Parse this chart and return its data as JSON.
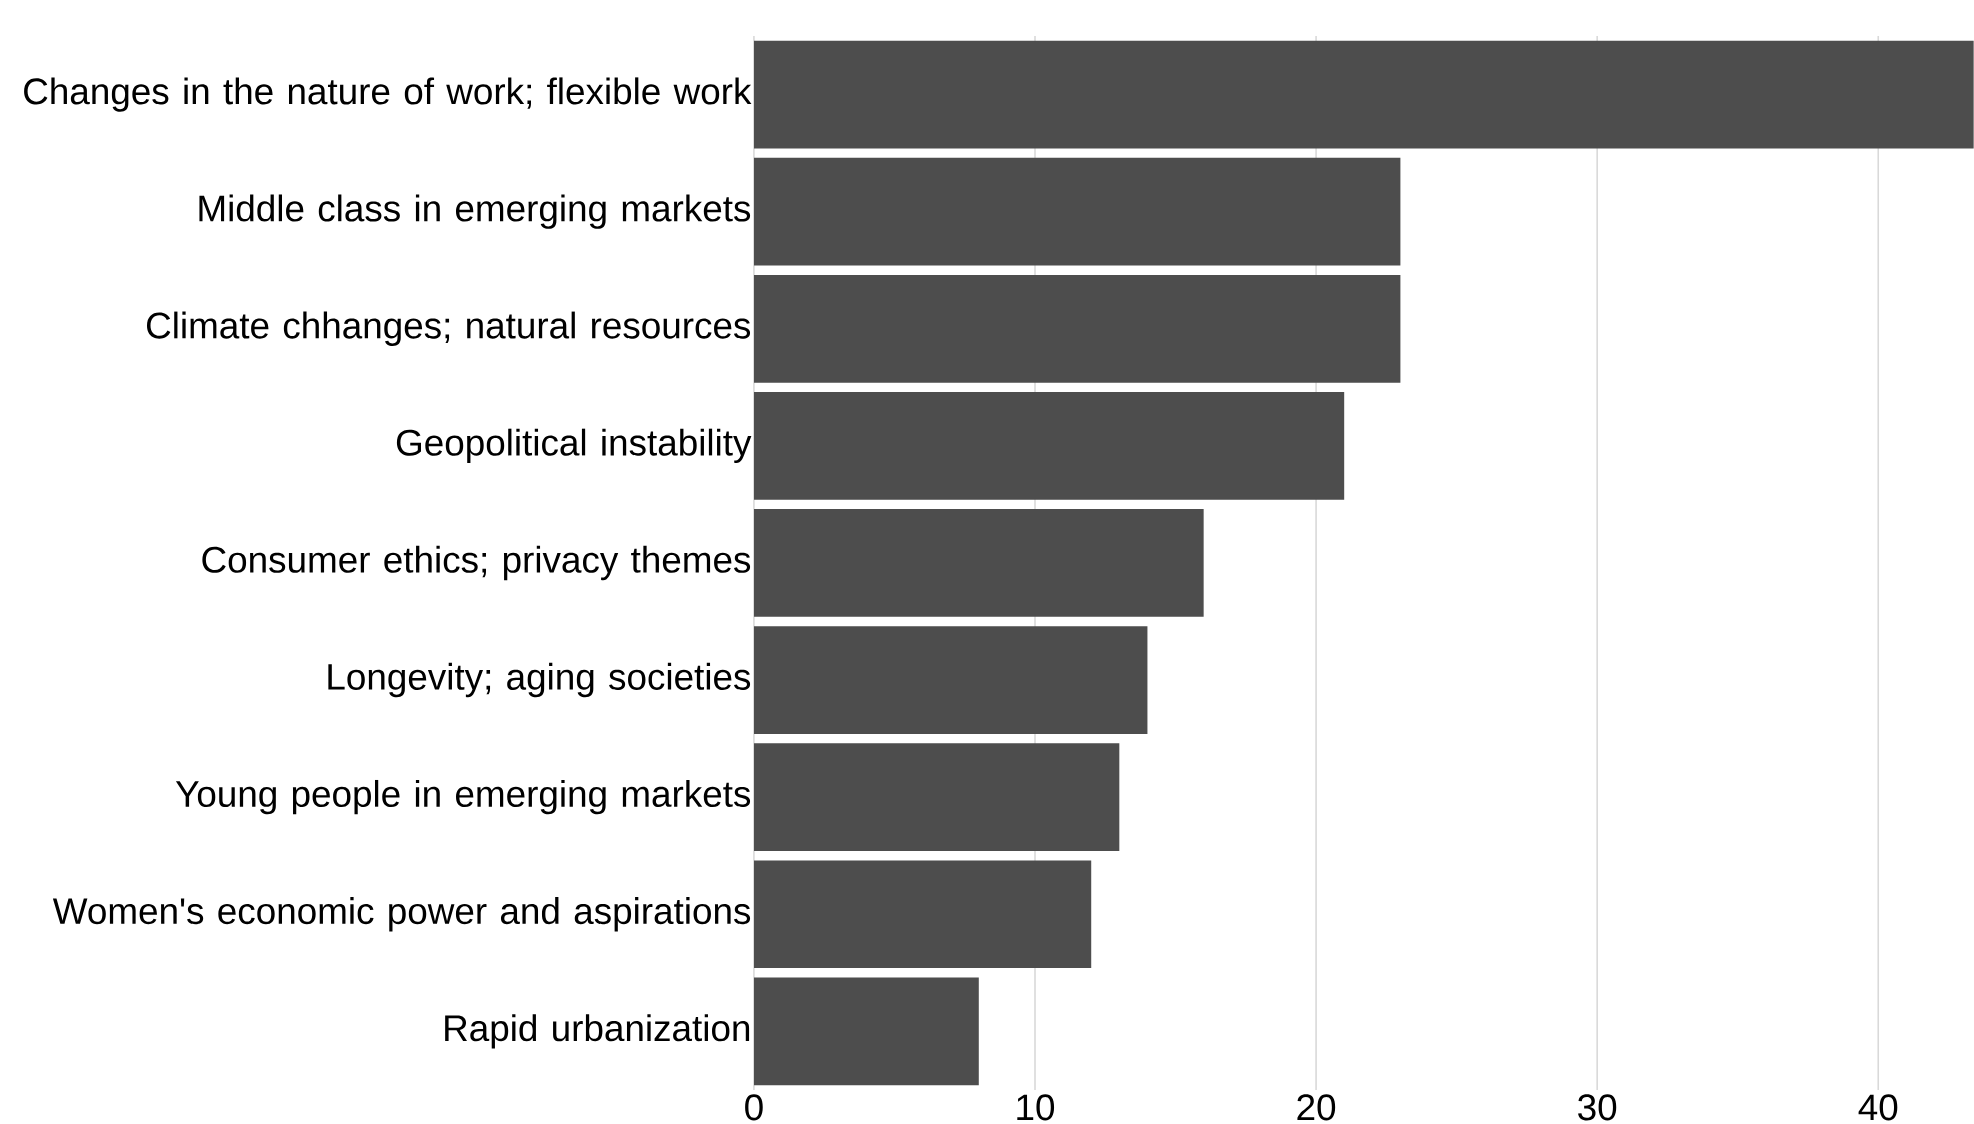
{
  "chart_data": {
    "type": "bar",
    "orientation": "horizontal",
    "categories": [
      "Changes in the nature of work; flexible work",
      "Middle class in emerging markets",
      "Climate chhanges; natural resources",
      "Geopolitical instability",
      "Consumer ethics; privacy themes",
      "Longevity; aging societies",
      "Young people in emerging markets",
      "Women's economic power and aspirations",
      "Rapid urbanization"
    ],
    "values": [
      43.4,
      23,
      23,
      21,
      16,
      14,
      13,
      12,
      8
    ],
    "color": "#4d4d4d",
    "xlim": [
      0,
      43.4
    ],
    "xticks": [
      0,
      10,
      20,
      30,
      40
    ],
    "grid": "x"
  }
}
